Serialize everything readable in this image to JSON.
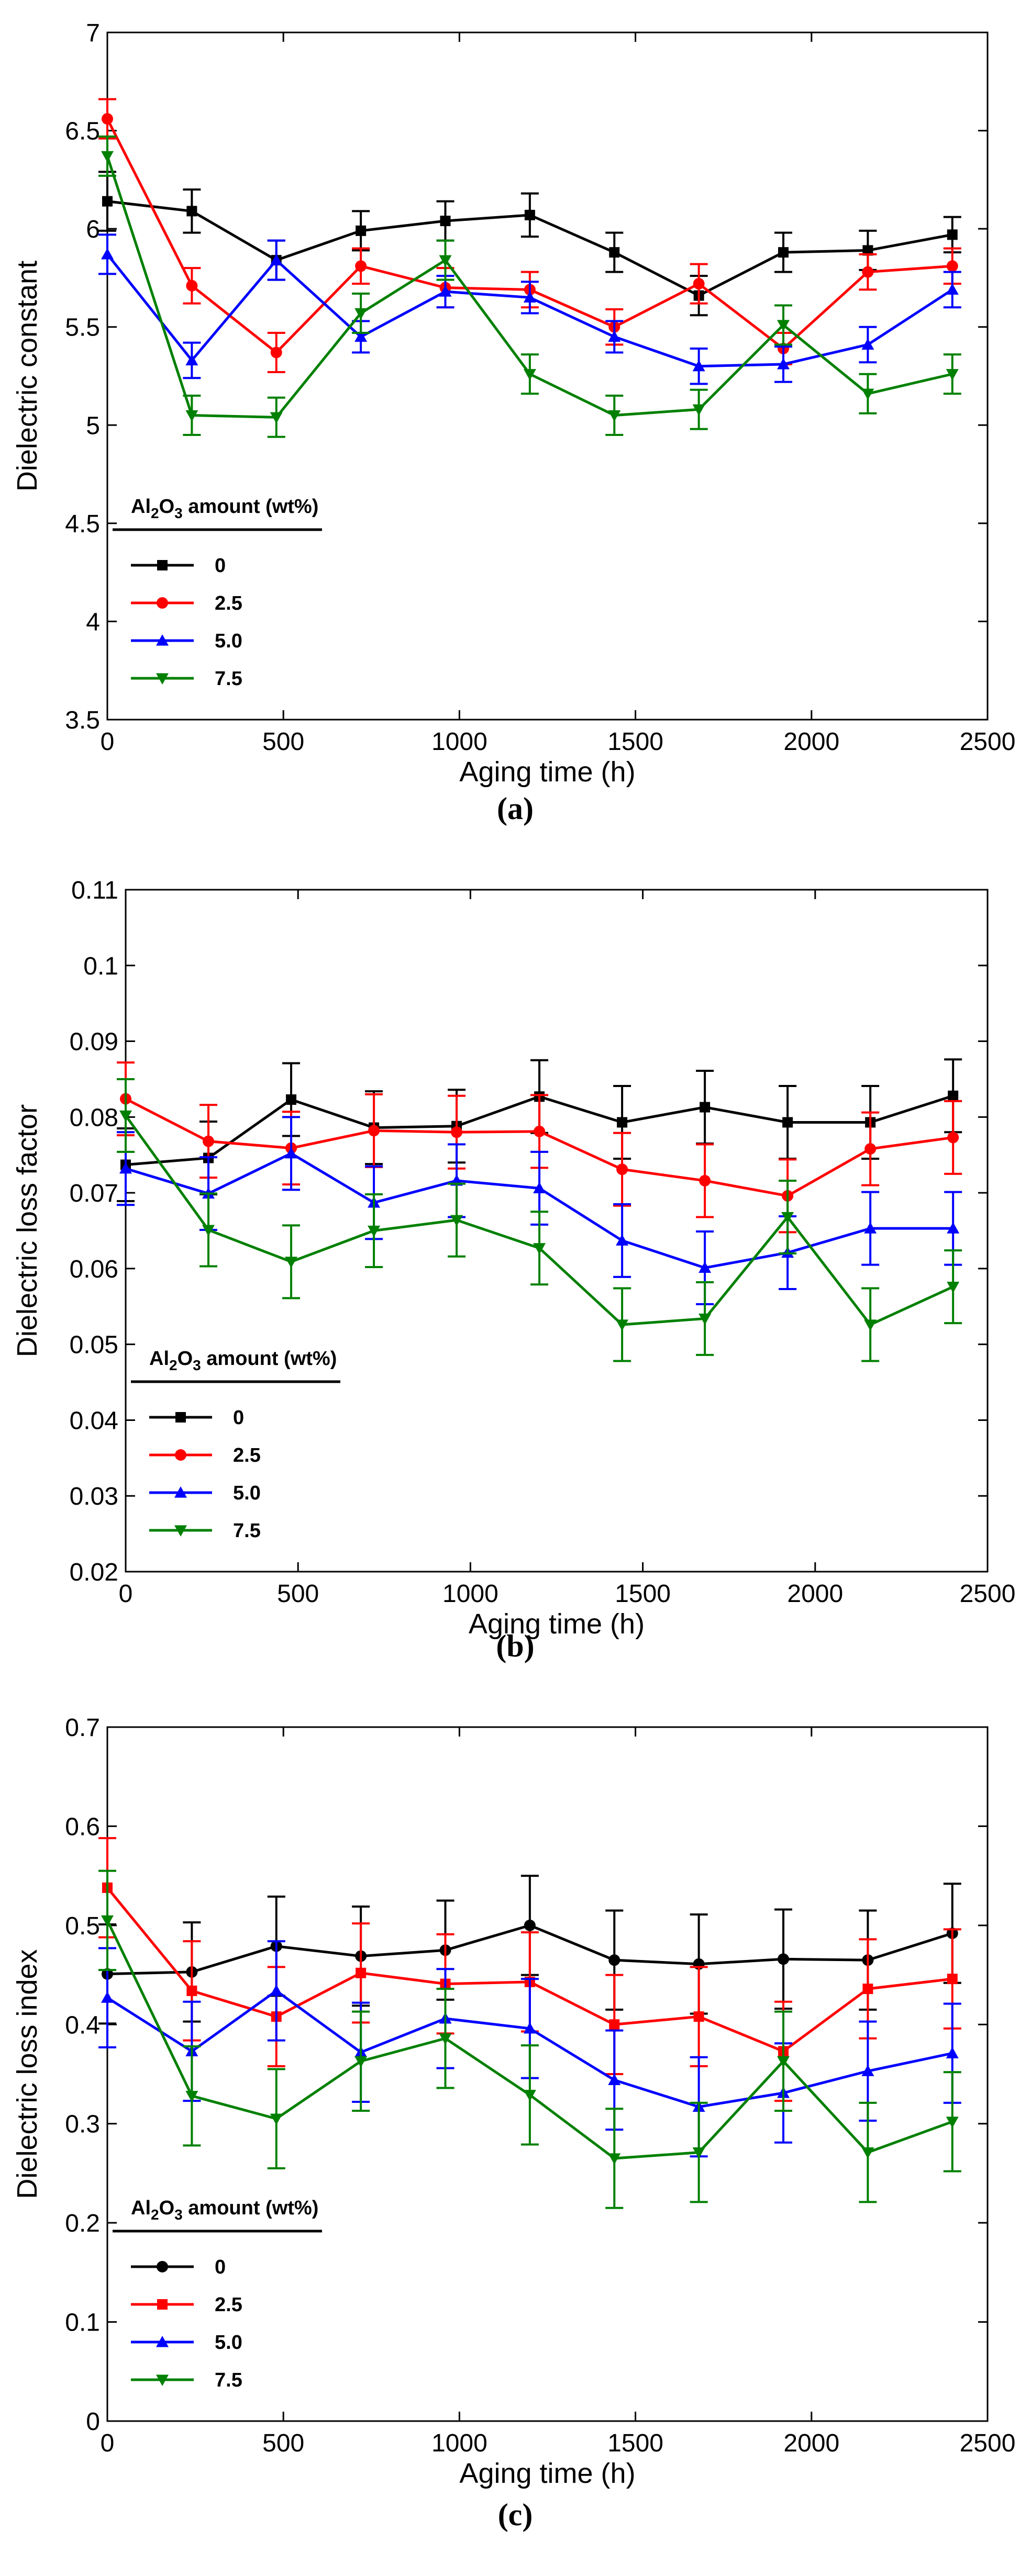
{
  "chart_data": [
    {
      "type": "line",
      "panel_label": "(a)",
      "xlabel": "Aging time (h)",
      "ylabel": "Dielectric constant",
      "xlim": [
        0,
        2500
      ],
      "ylim": [
        3.5,
        7
      ],
      "xticks": [
        0,
        500,
        1000,
        1500,
        2000,
        2500
      ],
      "yticks": [
        3.5,
        4,
        4.5,
        5,
        5.5,
        6,
        6.5,
        7
      ],
      "x_tick_labels": [
        "0",
        "500",
        "1000",
        "1500",
        "2000",
        "2500"
      ],
      "y_tick_labels": [
        "3.5",
        "4",
        "4.5",
        "5",
        "5.5",
        "6",
        "6.5",
        "7"
      ],
      "grid": false,
      "legend_position": "lower-left",
      "legend_title": "Al2O3 amount (wt%)",
      "x": [
        0,
        240,
        480,
        720,
        960,
        1200,
        1440,
        1680,
        1920,
        2160,
        2400
      ],
      "series": [
        {
          "name": "0",
          "color": "#000000",
          "marker": "square",
          "values": [
            6.14,
            6.09,
            5.84,
            5.99,
            6.04,
            6.07,
            5.88,
            5.66,
            5.88,
            5.89,
            5.97
          ],
          "errors": [
            0.15,
            0.11,
            0.1,
            0.1,
            0.1,
            0.11,
            0.1,
            0.1,
            0.1,
            0.1,
            0.09
          ]
        },
        {
          "name": "2.5",
          "color": "#ff0000",
          "marker": "circle",
          "values": [
            6.56,
            5.71,
            5.37,
            5.81,
            5.7,
            5.69,
            5.5,
            5.72,
            5.39,
            5.78,
            5.81
          ],
          "errors": [
            0.1,
            0.09,
            0.1,
            0.09,
            0.1,
            0.09,
            0.09,
            0.1,
            0.08,
            0.09,
            0.09
          ]
        },
        {
          "name": "5.0",
          "color": "#0000ff",
          "marker": "triangle-up",
          "values": [
            5.87,
            5.33,
            5.84,
            5.45,
            5.68,
            5.65,
            5.45,
            5.3,
            5.31,
            5.41,
            5.69
          ],
          "errors": [
            0.1,
            0.09,
            0.1,
            0.08,
            0.08,
            0.08,
            0.08,
            0.09,
            0.09,
            0.09,
            0.09
          ]
        },
        {
          "name": "7.5",
          "color": "#008000",
          "marker": "triangle-down",
          "values": [
            6.37,
            5.05,
            5.04,
            5.57,
            5.84,
            5.26,
            5.05,
            5.08,
            5.51,
            5.16,
            5.26
          ],
          "errors": [
            0.1,
            0.1,
            0.1,
            0.1,
            0.1,
            0.1,
            0.1,
            0.1,
            0.1,
            0.1,
            0.1
          ]
        }
      ]
    },
    {
      "type": "line",
      "panel_label": "(b)",
      "xlabel": "Aging time (h)",
      "ylabel": "Dielectric loss factor",
      "xlim": [
        0,
        2500
      ],
      "ylim": [
        0.02,
        0.11
      ],
      "xticks": [
        0,
        500,
        1000,
        1500,
        2000,
        2500
      ],
      "yticks": [
        0.02,
        0.03,
        0.04,
        0.05,
        0.06,
        0.07,
        0.08,
        0.09,
        0.1,
        0.11
      ],
      "x_tick_labels": [
        "0",
        "500",
        "1000",
        "1500",
        "2000",
        "2500"
      ],
      "y_tick_labels": [
        "0.02",
        "0.03",
        "0.04",
        "0.05",
        "0.06",
        "0.07",
        "0.08",
        "0.09",
        "0.1",
        "0.11"
      ],
      "grid": false,
      "legend_position": "lower-left",
      "legend_title": "Al2O3 amount (wt%)",
      "x": [
        0,
        240,
        480,
        720,
        960,
        1200,
        1440,
        1680,
        1920,
        2160,
        2400
      ],
      "series": [
        {
          "name": "0",
          "color": "#000000",
          "marker": "square",
          "values": [
            0.0737,
            0.0746,
            0.0823,
            0.0786,
            0.0788,
            0.0827,
            0.0793,
            0.0813,
            0.0793,
            0.0793,
            0.0828
          ],
          "errors": [
            0.0048,
            0.0048,
            0.0048,
            0.0048,
            0.0048,
            0.0048,
            0.0048,
            0.0048,
            0.0048,
            0.0048,
            0.0048
          ]
        },
        {
          "name": "2.5",
          "color": "#ff0000",
          "marker": "circle",
          "values": [
            0.0824,
            0.0768,
            0.0759,
            0.0782,
            0.078,
            0.0781,
            0.0731,
            0.0716,
            0.0696,
            0.0758,
            0.0773
          ],
          "errors": [
            0.0048,
            0.0048,
            0.0048,
            0.0048,
            0.0048,
            0.0048,
            0.0048,
            0.0048,
            0.0048,
            0.0048,
            0.0048
          ]
        },
        {
          "name": "5.0",
          "color": "#0000ff",
          "marker": "triangle-up",
          "values": [
            0.0732,
            0.0699,
            0.0752,
            0.0687,
            0.0716,
            0.0706,
            0.0637,
            0.0601,
            0.0621,
            0.0653,
            0.0653
          ],
          "errors": [
            0.0048,
            0.0048,
            0.0048,
            0.0048,
            0.0048,
            0.0048,
            0.0048,
            0.0048,
            0.0048,
            0.0048,
            0.0048
          ]
        },
        {
          "name": "7.5",
          "color": "#008000",
          "marker": "triangle-down",
          "values": [
            0.0802,
            0.0651,
            0.0609,
            0.065,
            0.0664,
            0.0627,
            0.0526,
            0.0534,
            0.0668,
            0.0526,
            0.0576
          ],
          "errors": [
            0.0048,
            0.0048,
            0.0048,
            0.0048,
            0.0048,
            0.0048,
            0.0048,
            0.0048,
            0.0048,
            0.0048,
            0.0048
          ]
        }
      ]
    },
    {
      "type": "line",
      "panel_label": "(c)",
      "xlabel": "Aging time (h)",
      "ylabel": "Dielectric loss index",
      "xlim": [
        0,
        2500
      ],
      "ylim": [
        0,
        0.7
      ],
      "xticks": [
        0,
        500,
        1000,
        1500,
        2000,
        2500
      ],
      "yticks": [
        0,
        0.1,
        0.2,
        0.3,
        0.4,
        0.5,
        0.6,
        0.7
      ],
      "x_tick_labels": [
        "0",
        "500",
        "1000",
        "1500",
        "2000",
        "2500"
      ],
      "y_tick_labels": [
        "0",
        "0.1",
        "0.2",
        "0.3",
        "0.4",
        "0.5",
        "0.6",
        "0.7"
      ],
      "grid": false,
      "legend_position": "lower-left",
      "legend_title": "Al2O3 amount (wt%)",
      "x": [
        0,
        240,
        480,
        720,
        960,
        1200,
        1440,
        1680,
        1920,
        2160,
        2400
      ],
      "series": [
        {
          "name": "0",
          "color": "#000000",
          "marker": "circle",
          "values": [
            0.451,
            0.453,
            0.479,
            0.469,
            0.475,
            0.5,
            0.465,
            0.461,
            0.466,
            0.465,
            0.492
          ],
          "errors": [
            0.05,
            0.05,
            0.05,
            0.05,
            0.05,
            0.05,
            0.05,
            0.05,
            0.05,
            0.05,
            0.05
          ]
        },
        {
          "name": "2.5",
          "color": "#ff0000",
          "marker": "square",
          "values": [
            0.538,
            0.434,
            0.408,
            0.452,
            0.441,
            0.443,
            0.4,
            0.408,
            0.373,
            0.436,
            0.446
          ],
          "errors": [
            0.05,
            0.05,
            0.05,
            0.05,
            0.05,
            0.05,
            0.05,
            0.05,
            0.05,
            0.05,
            0.05
          ]
        },
        {
          "name": "5.0",
          "color": "#0000ff",
          "marker": "triangle-up",
          "values": [
            0.427,
            0.373,
            0.434,
            0.372,
            0.406,
            0.396,
            0.344,
            0.317,
            0.331,
            0.353,
            0.371
          ],
          "errors": [
            0.05,
            0.05,
            0.05,
            0.05,
            0.05,
            0.05,
            0.05,
            0.05,
            0.05,
            0.05,
            0.05
          ]
        },
        {
          "name": "7.5",
          "color": "#008000",
          "marker": "triangle-down",
          "values": [
            0.505,
            0.328,
            0.305,
            0.363,
            0.386,
            0.329,
            0.265,
            0.271,
            0.363,
            0.271,
            0.302
          ],
          "errors": [
            0.05,
            0.05,
            0.05,
            0.05,
            0.05,
            0.05,
            0.05,
            0.05,
            0.05,
            0.05,
            0.05
          ]
        }
      ]
    }
  ]
}
